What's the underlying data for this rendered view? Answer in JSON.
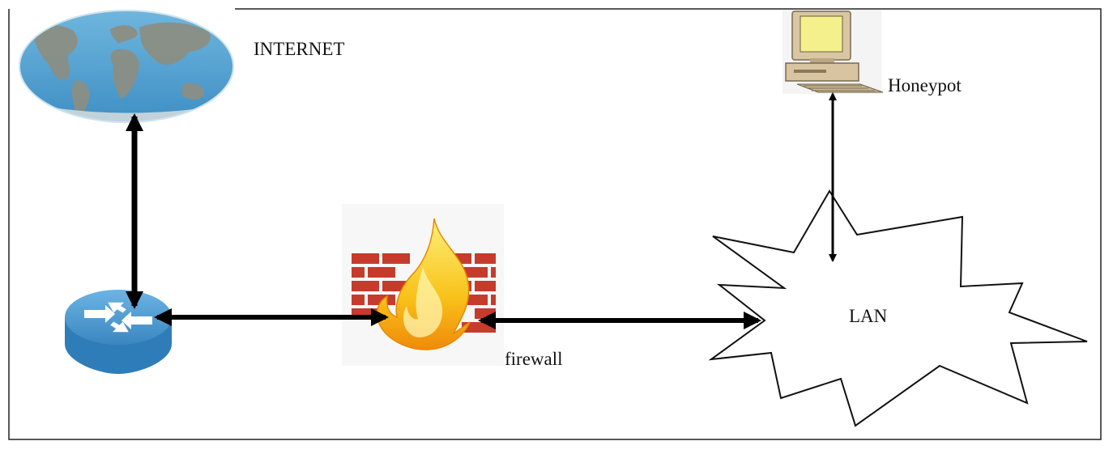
{
  "nodes": {
    "internet": {
      "label": "INTERNET",
      "icon": "world-map-icon"
    },
    "honeypot": {
      "label": "Honeypot",
      "icon": "desktop-computer-icon"
    },
    "firewall": {
      "label": "firewall",
      "icon": "firewall-icon"
    },
    "lan": {
      "label": "LAN",
      "icon": "cloud-burst-icon"
    },
    "router": {
      "label": "",
      "icon": "router-icon"
    }
  },
  "edges": [
    {
      "from": "internet",
      "to": "router",
      "direction": "both"
    },
    {
      "from": "router",
      "to": "firewall",
      "direction": "both"
    },
    {
      "from": "firewall",
      "to": "lan",
      "direction": "both"
    },
    {
      "from": "honeypot",
      "to": "lan",
      "direction": "both"
    }
  ],
  "colors": {
    "arrow": "#000000",
    "ocean": "#4f9fd0",
    "land": "#8c8f86",
    "router": "#3d8cc4",
    "brick": "#c0392b",
    "flame": "#f6b40a",
    "monitor": "#f3f091",
    "beige": "#dcc8a8"
  }
}
